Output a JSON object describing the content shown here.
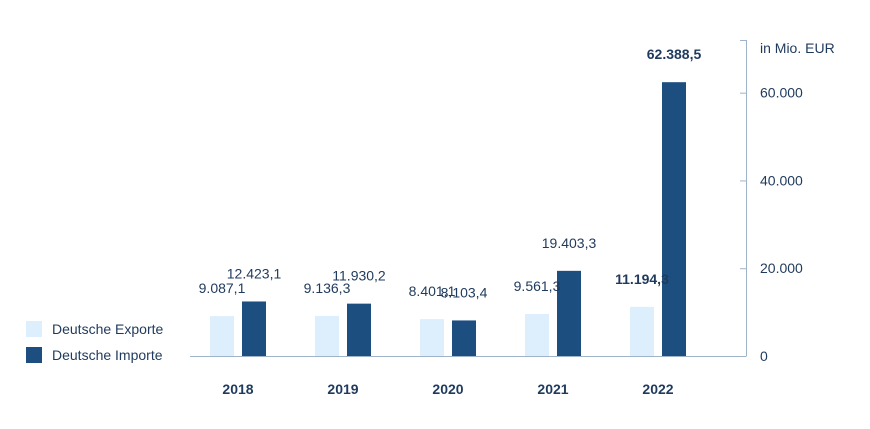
{
  "chart_data": {
    "type": "bar",
    "categories": [
      "2018",
      "2019",
      "2020",
      "2021",
      "2022"
    ],
    "series": [
      {
        "name": "Deutsche Exporte",
        "color": "#ddeefc",
        "values": [
          9087.1,
          9136.3,
          8401.1,
          9561.3,
          11194.3
        ],
        "labels": [
          "9.087,1",
          "9.136,3",
          "8.401,1",
          "9.561,3",
          "11.194,3"
        ],
        "bold_labels": [
          false,
          false,
          false,
          false,
          true
        ]
      },
      {
        "name": "Deutsche Importe",
        "color": "#1d4e80",
        "values": [
          12423.1,
          11930.2,
          8103.4,
          19403.3,
          62388.5
        ],
        "labels": [
          "12.423,1",
          "11.930,2",
          "8.103,4",
          "19.403,3",
          "62.388,5"
        ],
        "bold_labels": [
          false,
          false,
          false,
          false,
          true
        ]
      }
    ],
    "y_axis": {
      "unit": "in Mio. EUR",
      "ticks": [
        0,
        20000,
        40000,
        60000
      ],
      "tick_labels": [
        "0",
        "20.000",
        "40.000",
        "60.000"
      ],
      "ylim": [
        0,
        72000
      ],
      "position": "right"
    },
    "legend": {
      "placement": "bottom-left",
      "items": [
        "Deutsche Exporte",
        "Deutsche Importe"
      ]
    },
    "grid": false,
    "baseline_color": "#9fb4c8"
  }
}
